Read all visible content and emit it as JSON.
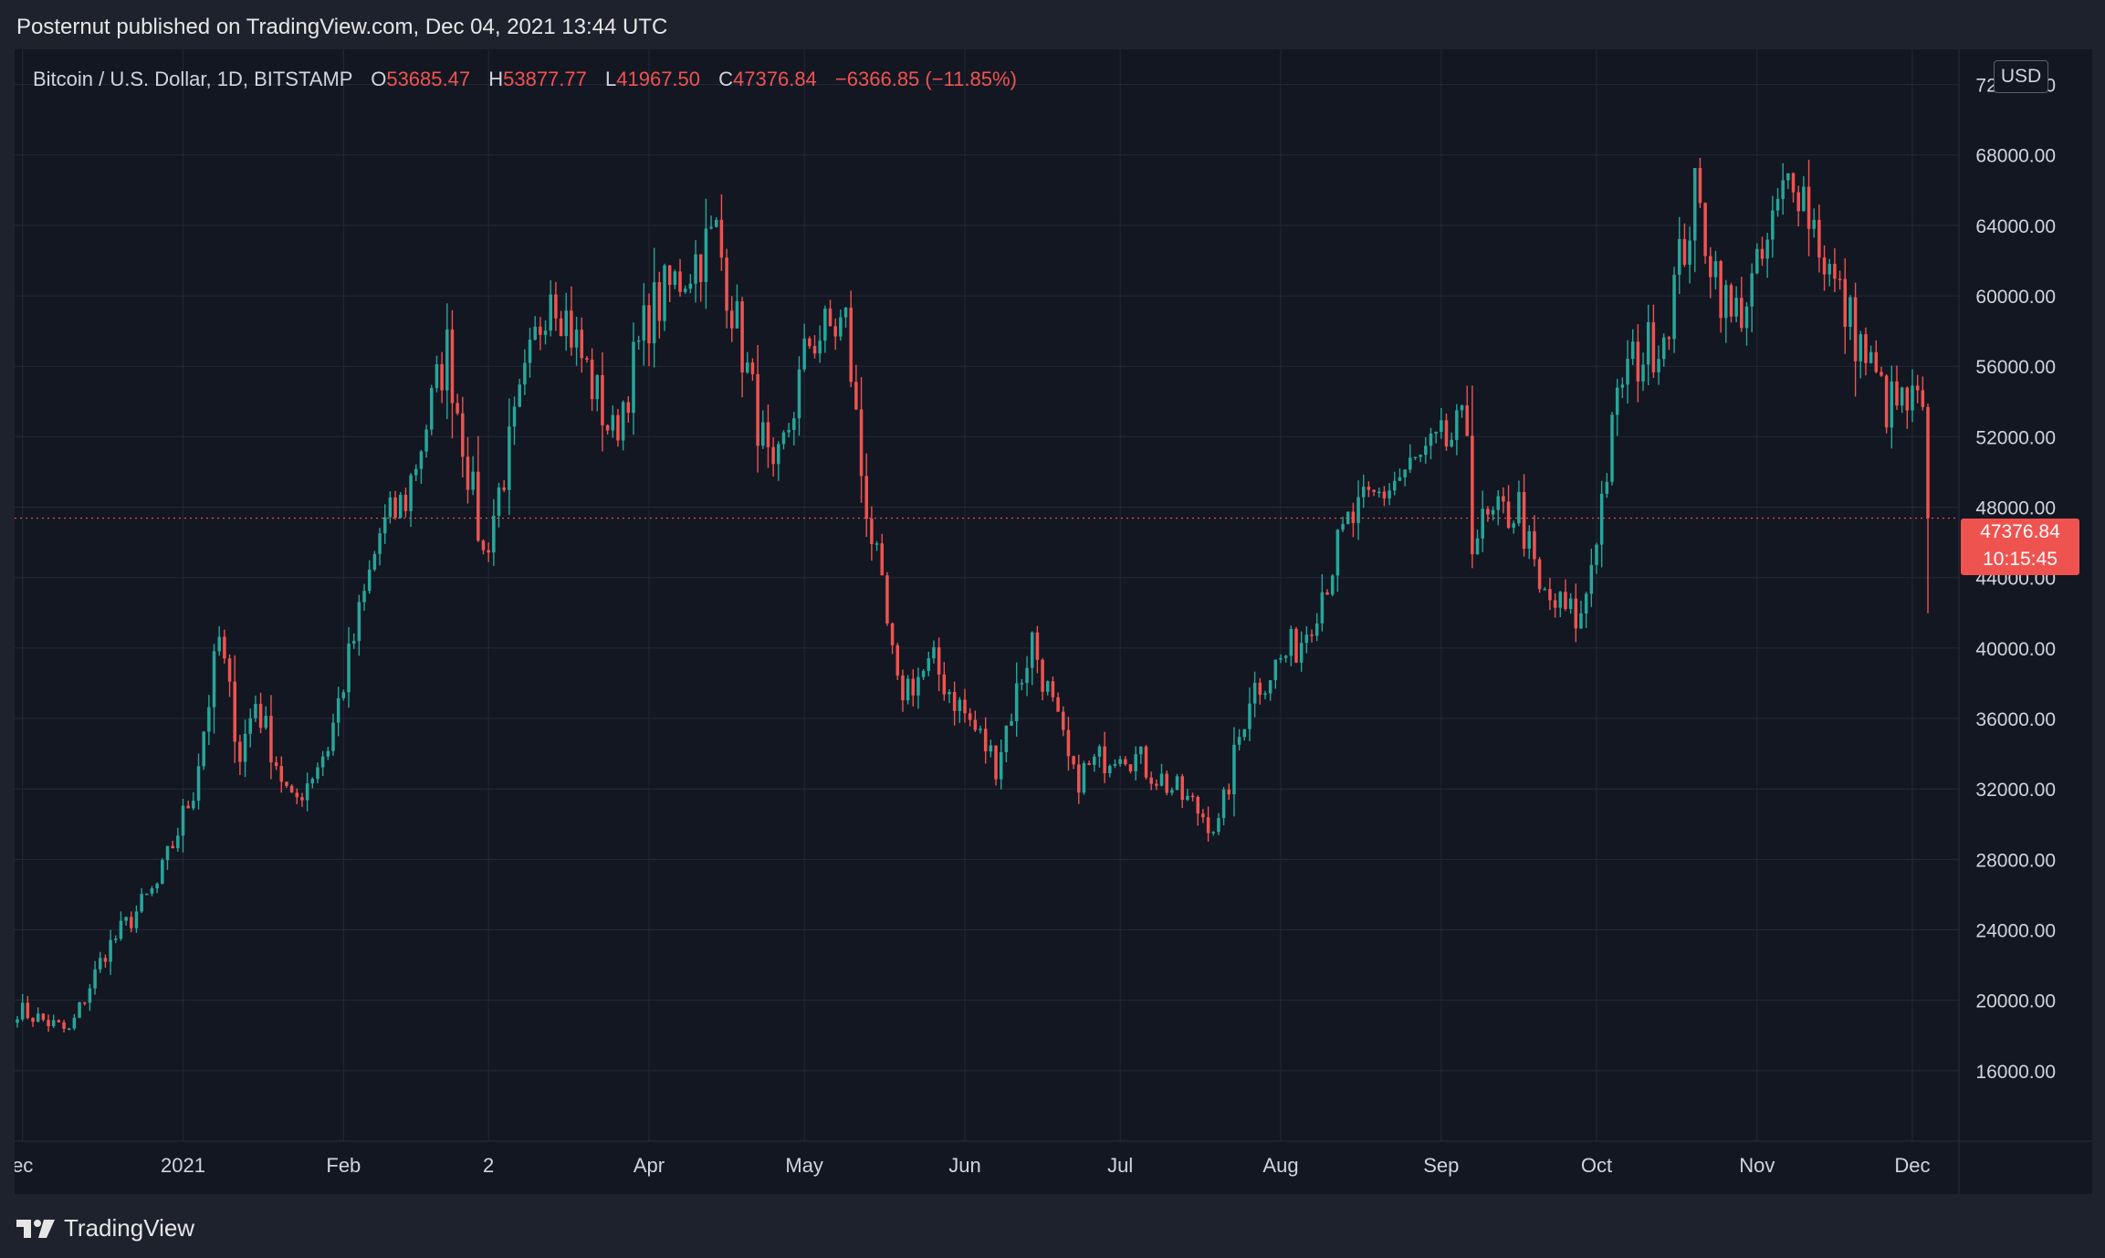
{
  "header": {
    "publish_line": "Posternut published on TradingView.com, Dec 04, 2021 13:44 UTC"
  },
  "legend": {
    "symbol": "Bitcoin / U.S. Dollar, 1D, BITSTAMP",
    "open_label": "O",
    "open": "53685.47",
    "high_label": "H",
    "high": "53877.77",
    "low_label": "L",
    "low": "41967.50",
    "close_label": "C",
    "close": "47376.84",
    "change": "−6366.85 (−11.85%)"
  },
  "price_axis": {
    "currency": "USD"
  },
  "price_tag": {
    "price": "47376.84",
    "countdown": "10:15:45"
  },
  "footer": {
    "brand": "TradingView",
    "logo_icon": "tradingview-logo-icon"
  },
  "colors": {
    "up": "#26a69a",
    "down": "#ef5350",
    "background": "#131722",
    "grid": "#242838",
    "text": "#d1d4dc"
  },
  "chart_data": {
    "type": "candlestick",
    "title": "Bitcoin / U.S. Dollar, 1D, BITSTAMP",
    "ylim": [
      12000,
      74000
    ],
    "y_ticks": [
      16000,
      20000,
      24000,
      28000,
      32000,
      36000,
      40000,
      44000,
      48000,
      52000,
      56000,
      60000,
      64000,
      68000,
      72000
    ],
    "x_ticks": [
      {
        "label": "ec",
        "date": "2020-12-01"
      },
      {
        "label": "2021",
        "date": "2021-01-01"
      },
      {
        "label": "Feb",
        "date": "2021-02-01"
      },
      {
        "label": "2",
        "date": "2021-03-01"
      },
      {
        "label": "Apr",
        "date": "2021-04-01"
      },
      {
        "label": "May",
        "date": "2021-05-01"
      },
      {
        "label": "Jun",
        "date": "2021-06-01"
      },
      {
        "label": "Jul",
        "date": "2021-07-01"
      },
      {
        "label": "Aug",
        "date": "2021-08-01"
      },
      {
        "label": "Sep",
        "date": "2021-09-01"
      },
      {
        "label": "Oct",
        "date": "2021-10-01"
      },
      {
        "label": "Nov",
        "date": "2021-11-01"
      },
      {
        "label": "Dec",
        "date": "2021-12-01"
      }
    ],
    "date_range": [
      "2020-11-30",
      "2021-12-04"
    ],
    "last_price": 47376.84,
    "close_key_points": [
      {
        "date": "2020-11-30",
        "close": 19500
      },
      {
        "date": "2020-12-10",
        "close": 18200
      },
      {
        "date": "2020-12-17",
        "close": 22800
      },
      {
        "date": "2020-12-27",
        "close": 26500
      },
      {
        "date": "2021-01-03",
        "close": 32000
      },
      {
        "date": "2021-01-08",
        "close": 40500
      },
      {
        "date": "2021-01-12",
        "close": 34000
      },
      {
        "date": "2021-01-15",
        "close": 37000
      },
      {
        "date": "2021-01-22",
        "close": 31000
      },
      {
        "date": "2021-01-29",
        "close": 34500
      },
      {
        "date": "2021-02-08",
        "close": 46500
      },
      {
        "date": "2021-02-13",
        "close": 48500
      },
      {
        "date": "2021-02-21",
        "close": 57000
      },
      {
        "date": "2021-02-28",
        "close": 45200
      },
      {
        "date": "2021-03-13",
        "close": 61000
      },
      {
        "date": "2021-03-25",
        "close": 52000
      },
      {
        "date": "2021-04-01",
        "close": 59000
      },
      {
        "date": "2021-04-14",
        "close": 63500
      },
      {
        "date": "2021-04-25",
        "close": 49000
      },
      {
        "date": "2021-05-02",
        "close": 57500
      },
      {
        "date": "2021-05-09",
        "close": 58500
      },
      {
        "date": "2021-05-12",
        "close": 50000
      },
      {
        "date": "2021-05-19",
        "close": 37500
      },
      {
        "date": "2021-05-26",
        "close": 39000
      },
      {
        "date": "2021-06-07",
        "close": 33500
      },
      {
        "date": "2021-06-14",
        "close": 40500
      },
      {
        "date": "2021-06-22",
        "close": 32500
      },
      {
        "date": "2021-07-01",
        "close": 34500
      },
      {
        "date": "2021-07-20",
        "close": 29800
      },
      {
        "date": "2021-07-26",
        "close": 37500
      },
      {
        "date": "2021-08-05",
        "close": 40500
      },
      {
        "date": "2021-08-14",
        "close": 47000
      },
      {
        "date": "2021-08-23",
        "close": 49500
      },
      {
        "date": "2021-09-06",
        "close": 52500
      },
      {
        "date": "2021-09-07",
        "close": 46500
      },
      {
        "date": "2021-09-16",
        "close": 48000
      },
      {
        "date": "2021-09-20",
        "close": 43000
      },
      {
        "date": "2021-09-28",
        "close": 41500
      },
      {
        "date": "2021-10-06",
        "close": 55500
      },
      {
        "date": "2021-10-14",
        "close": 58000
      },
      {
        "date": "2021-10-20",
        "close": 65500
      },
      {
        "date": "2021-10-27",
        "close": 58500
      },
      {
        "date": "2021-11-01",
        "close": 61000
      },
      {
        "date": "2021-11-08",
        "close": 67500
      },
      {
        "date": "2021-11-16",
        "close": 60500
      },
      {
        "date": "2021-11-22",
        "close": 56500
      },
      {
        "date": "2021-11-26",
        "close": 53800
      },
      {
        "date": "2021-12-03",
        "close": 53685
      },
      {
        "date": "2021-12-04",
        "close": 47376.84
      }
    ]
  }
}
